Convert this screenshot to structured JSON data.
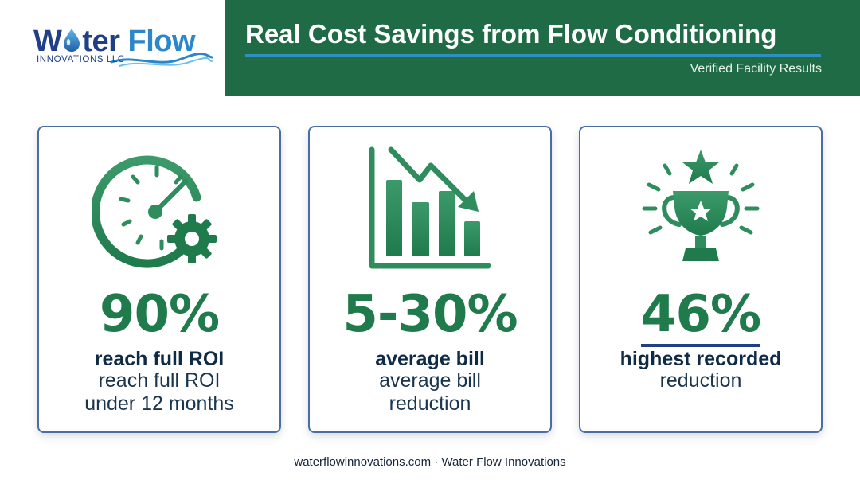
{
  "logo": {
    "word_part1": "W",
    "word_part2": "ter",
    "word_part3": "Flow",
    "subtitle": "INNOVATIONS LLC",
    "drop_icon": "water-drop-icon",
    "colors": {
      "navy": "#1f3f86",
      "blue": "#2b87c9"
    }
  },
  "header": {
    "title": "Real Cost Savings from Flow Conditioning",
    "subtitle": "Verified Facility Results",
    "band_color": "#1f6b46",
    "accent_line_color": "#2f8fbf"
  },
  "cards": [
    {
      "icon": "stopwatch-gear-icon",
      "value": "90%",
      "label_bold": "reach full ROI",
      "label_line1": "reach full ROI",
      "label_line2": "under 12 months"
    },
    {
      "icon": "declining-bar-chart-icon",
      "value": "5-30%",
      "label_bold": "average bill",
      "label_line1": "average bill",
      "label_line2": "reduction"
    },
    {
      "icon": "trophy-star-icon",
      "value": "46%",
      "label_bold": "highest recorded",
      "label_line1": "reduction",
      "label_line2": ""
    }
  ],
  "colors": {
    "accent_green": "#1f7a4c",
    "card_border": "#4a6ea3",
    "text_dark": "#0f2a44"
  },
  "footer": "waterflowinnovations.com · Water Flow Innovations"
}
